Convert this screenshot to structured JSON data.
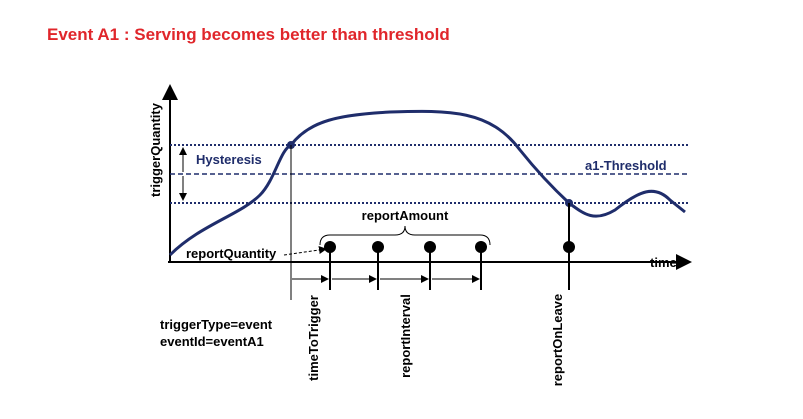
{
  "title": "Event A1 : Serving becomes better than threshold",
  "labels": {
    "y_axis": "triggerQuantity",
    "x_axis": "time",
    "hysteresis": "Hysteresis",
    "threshold": "a1-Threshold",
    "report_amount": "reportAmount",
    "report_quantity": "reportQuantity",
    "time_to_trigger": "timeToTrigger",
    "report_interval": "reportInterval",
    "report_on_leave": "reportOnLeave",
    "trigger_type": "triggerType=event",
    "event_id": "eventId=eventA1"
  }
}
